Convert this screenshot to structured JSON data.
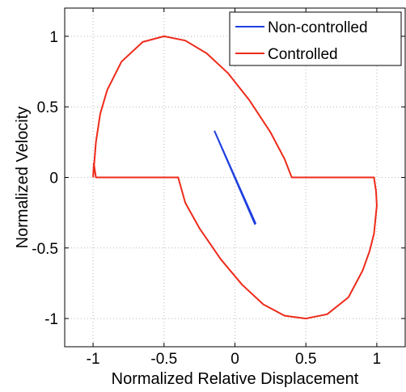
{
  "chart_data": {
    "type": "line",
    "title": "",
    "xlabel": "Normalized Relative Displacement",
    "ylabel": "Normalized Velocity",
    "xlim": [
      -1.2,
      1.2
    ],
    "ylim": [
      -1.2,
      1.2
    ],
    "grid": true,
    "legend_position": "top-right",
    "x_ticks": [
      -1,
      -0.5,
      0,
      0.5,
      1
    ],
    "x_tick_labels": [
      "-1",
      "-0.5",
      "0",
      "0.5",
      "1"
    ],
    "y_ticks": [
      1,
      0.5,
      0,
      -0.5,
      -1
    ],
    "y_tick_labels": [
      "1",
      "0.5",
      "0",
      "-0.5",
      "-1"
    ],
    "series": [
      {
        "name": "Non-controlled",
        "color": "#1f3fe0",
        "x": [
          -0.145,
          0.14,
          0.145,
          -0.14,
          -0.145
        ],
        "y": [
          0.33,
          -0.33,
          -0.325,
          0.32,
          0.33
        ]
      },
      {
        "name": "Controlled",
        "color": "#ee2a1a",
        "x": [
          -1.0,
          -0.98,
          -0.95,
          -0.9,
          -0.8,
          -0.65,
          -0.5,
          -0.35,
          -0.2,
          -0.05,
          0.1,
          0.25,
          0.35,
          0.4,
          0.98,
          0.995,
          1.0,
          0.98,
          0.95,
          0.9,
          0.8,
          0.65,
          0.5,
          0.35,
          0.2,
          0.05,
          -0.1,
          -0.25,
          -0.35,
          -0.4,
          -0.98,
          -0.995,
          -1.0
        ],
        "y": [
          0.0,
          0.25,
          0.45,
          0.62,
          0.82,
          0.96,
          1.0,
          0.97,
          0.88,
          0.74,
          0.55,
          0.32,
          0.13,
          0.0,
          0.0,
          -0.1,
          -0.2,
          -0.4,
          -0.52,
          -0.66,
          -0.85,
          -0.97,
          -1.0,
          -0.98,
          -0.9,
          -0.76,
          -0.58,
          -0.36,
          -0.18,
          0.0,
          0.0,
          0.1,
          0.0
        ]
      }
    ]
  }
}
